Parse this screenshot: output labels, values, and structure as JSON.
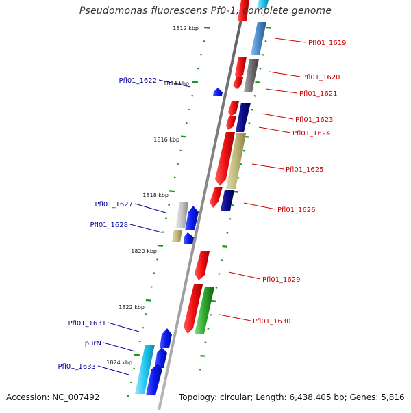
{
  "header": {
    "title": "Pseudomonas fluorescens Pf0-1, complete genome"
  },
  "footer": {
    "accession": "Accession: NC_007492",
    "summary": "Topology: circular; Length: 6,438,405 bp; Genes: 5,816"
  },
  "scale": {
    "ticks": [
      {
        "label": "1812 kbp"
      },
      {
        "label": "1814 kbp"
      },
      {
        "label": "1816 kbp"
      },
      {
        "label": "1818 kbp"
      },
      {
        "label": "1820 kbp"
      },
      {
        "label": "1822 kbp"
      },
      {
        "label": "1824 kbp"
      }
    ]
  },
  "genes": {
    "right": [
      {
        "label": "Pfl01_1619"
      },
      {
        "label": "Pfl01_1620"
      },
      {
        "label": "Pfl01_1621"
      },
      {
        "label": "Pfl01_1623"
      },
      {
        "label": "Pfl01_1624"
      },
      {
        "label": "Pfl01_1625"
      },
      {
        "label": "Pfl01_1626"
      },
      {
        "label": "Pfl01_1629"
      },
      {
        "label": "Pfl01_1630"
      }
    ],
    "left": [
      {
        "label": "Pfl01_1622"
      },
      {
        "label": "Pfl01_1627"
      },
      {
        "label": "Pfl01_1628"
      },
      {
        "label": "Pfl01_1631"
      },
      {
        "label": "purN"
      },
      {
        "label": "Pfl01_1633"
      }
    ]
  },
  "colors": {
    "backbone": "#8c8c8c",
    "right_label": "#cc0000",
    "left_label": "#000099",
    "tick": "#119911",
    "red": "#ee1111",
    "blue": "#0a1aee",
    "navy": "#0a0a88",
    "steel": "#4a88c8",
    "gray": "#707070",
    "khaki": "#c0b878",
    "silver": "#c4c4c4",
    "green": "#2ea82e",
    "cyan": "#22c8f0"
  }
}
